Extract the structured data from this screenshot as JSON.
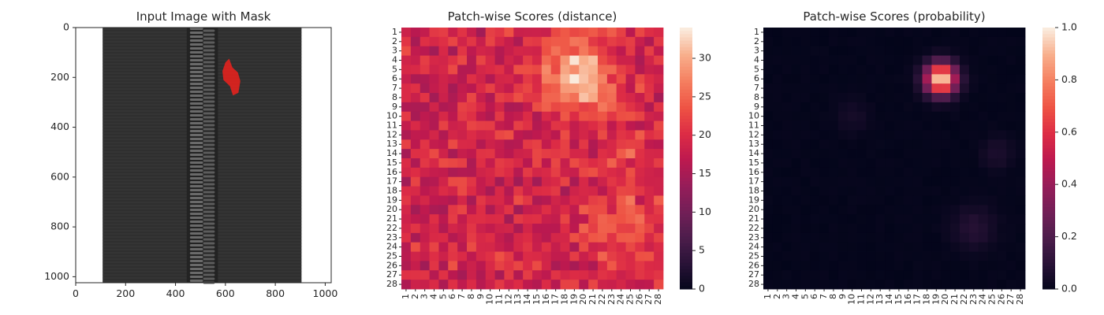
{
  "figure": {
    "panels": [
      {
        "title": "Input Image with Mask"
      },
      {
        "title": "Patch-wise Scores (distance)"
      },
      {
        "title": "Patch-wise Scores (probability)"
      }
    ]
  },
  "chart_data": [
    {
      "type": "image",
      "title": "Input Image with Mask",
      "xlim": [
        0,
        1024
      ],
      "ylim": [
        1024,
        0
      ],
      "x_ticks": [
        0,
        200,
        400,
        600,
        800,
        1000
      ],
      "y_ticks": [
        0,
        200,
        400,
        600,
        800,
        1000
      ],
      "content": "zipper on dark fabric",
      "mask": {
        "color": "#e0231e",
        "x_range": [
          590,
          670
        ],
        "y_range": [
          120,
          275
        ]
      }
    },
    {
      "type": "heatmap",
      "title": "Patch-wise Scores (distance)",
      "rows": 28,
      "cols": 28,
      "tick_labels": [
        "1",
        "2",
        "3",
        "4",
        "5",
        "6",
        "7",
        "8",
        "9",
        "10",
        "11",
        "12",
        "13",
        "14",
        "15",
        "16",
        "17",
        "18",
        "19",
        "20",
        "21",
        "22",
        "23",
        "24",
        "25",
        "26",
        "27",
        "28"
      ],
      "colorbar": {
        "min": 0,
        "max": 34,
        "ticks": [
          0,
          5,
          10,
          15,
          20,
          25,
          30
        ]
      },
      "background_level": 19,
      "hotspots": [
        {
          "row": 6,
          "col": 19.5,
          "peak": 34,
          "spread": 2.6
        },
        {
          "row": 22,
          "col": 24,
          "peak": 24.5,
          "spread": 2.8
        },
        {
          "row": 13.5,
          "col": 25,
          "peak": 22.5,
          "spread": 1.8
        }
      ]
    },
    {
      "type": "heatmap",
      "title": "Patch-wise Scores (probability)",
      "rows": 28,
      "cols": 28,
      "tick_labels": [
        "1",
        "2",
        "3",
        "4",
        "5",
        "6",
        "7",
        "8",
        "9",
        "10",
        "11",
        "12",
        "13",
        "14",
        "15",
        "16",
        "17",
        "18",
        "19",
        "20",
        "21",
        "22",
        "23",
        "24",
        "25",
        "26",
        "27",
        "28"
      ],
      "colorbar": {
        "min": 0.0,
        "max": 1.0,
        "ticks": [
          "0.0",
          "0.2",
          "0.4",
          "0.6",
          "0.8",
          "1.0"
        ]
      },
      "background_level": 0,
      "hotspots": [
        {
          "row": 6,
          "col": 19.5,
          "peak": 1.0,
          "spread": 1.15
        },
        {
          "row": 22,
          "col": 23,
          "peak": 0.09,
          "spread": 1.6
        },
        {
          "row": 14,
          "col": 25.5,
          "peak": 0.06,
          "spread": 1.2
        },
        {
          "row": 10,
          "col": 10,
          "peak": 0.05,
          "spread": 1.2
        }
      ]
    }
  ]
}
